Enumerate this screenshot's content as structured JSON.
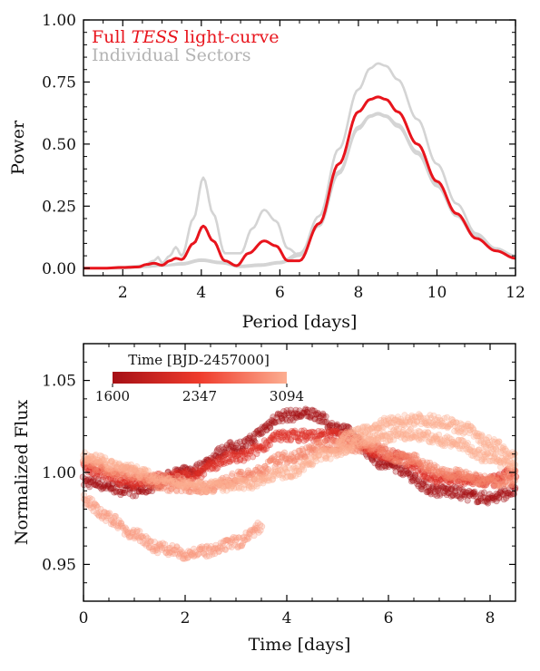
{
  "chart_data": [
    {
      "type": "line",
      "xlabel": "Period [days]",
      "ylabel": "Power",
      "xlim": [
        1,
        12
      ],
      "ylim": [
        -0.03,
        1.0
      ],
      "x_ticks": [
        2,
        4,
        6,
        8,
        10,
        12
      ],
      "y_ticks": [
        0.0,
        0.25,
        0.5,
        0.75,
        1.0
      ],
      "y_tick_labels": [
        "0.00",
        "0.25",
        "0.50",
        "0.75",
        "1.00"
      ],
      "legend": {
        "placement": "top-left",
        "entries": [
          {
            "prefix": "Full ",
            "emphasis": "TESS",
            "suffix": " light-curve",
            "color": "#e8141c"
          },
          {
            "text": "Individual Sectors",
            "color": "#b3b3b3"
          }
        ]
      },
      "series": [
        {
          "role": "sector",
          "color": "#d4d4d4",
          "x": [
            1.0,
            1.5,
            2.0,
            2.5,
            2.8,
            2.9,
            3.0,
            3.2,
            3.35,
            3.5,
            3.8,
            4.05,
            4.3,
            4.6,
            5.0,
            5.3,
            5.6,
            5.9,
            6.2,
            6.5,
            7.0,
            7.5,
            8.0,
            8.3,
            8.5,
            8.7,
            9.0,
            9.5,
            10.0,
            10.5,
            11.0,
            11.5,
            12.0
          ],
          "y": [
            0.0,
            0.0,
            0.005,
            0.01,
            0.03,
            0.045,
            0.02,
            0.05,
            0.085,
            0.05,
            0.2,
            0.365,
            0.22,
            0.06,
            0.06,
            0.16,
            0.235,
            0.19,
            0.08,
            0.05,
            0.21,
            0.48,
            0.72,
            0.805,
            0.825,
            0.815,
            0.76,
            0.6,
            0.42,
            0.26,
            0.14,
            0.08,
            0.05
          ]
        },
        {
          "role": "sector",
          "color": "#d4d4d4",
          "x": [
            1.0,
            1.5,
            2.0,
            2.5,
            3.0,
            3.5,
            4.0,
            4.5,
            5.0,
            5.5,
            6.0,
            6.5,
            7.0,
            7.5,
            8.0,
            8.3,
            8.5,
            8.7,
            9.0,
            9.5,
            10.0,
            10.5,
            11.0,
            11.5,
            12.0
          ],
          "y": [
            0.0,
            0.0,
            0.0,
            0.005,
            0.01,
            0.015,
            0.03,
            0.02,
            0.005,
            0.01,
            0.02,
            0.05,
            0.17,
            0.38,
            0.56,
            0.61,
            0.62,
            0.61,
            0.57,
            0.46,
            0.33,
            0.21,
            0.12,
            0.07,
            0.04
          ]
        },
        {
          "role": "sector",
          "color": "#d4d4d4",
          "x": [
            1.0,
            1.5,
            2.0,
            2.5,
            3.0,
            3.5,
            4.0,
            4.5,
            5.0,
            5.5,
            6.0,
            6.5,
            7.0,
            7.5,
            8.0,
            8.3,
            8.5,
            8.7,
            9.0,
            9.5,
            10.0,
            10.5,
            11.0,
            11.5,
            12.0
          ],
          "y": [
            0.0,
            0.0,
            0.0,
            0.005,
            0.01,
            0.02,
            0.035,
            0.025,
            0.01,
            0.015,
            0.025,
            0.06,
            0.18,
            0.39,
            0.57,
            0.615,
            0.625,
            0.615,
            0.58,
            0.47,
            0.34,
            0.22,
            0.13,
            0.08,
            0.05
          ]
        },
        {
          "role": "full",
          "color": "#e8141c",
          "x": [
            1.0,
            1.5,
            2.0,
            2.4,
            2.6,
            2.8,
            3.0,
            3.2,
            3.35,
            3.5,
            3.8,
            4.05,
            4.3,
            4.6,
            4.9,
            5.2,
            5.6,
            5.9,
            6.2,
            6.5,
            7.0,
            7.5,
            8.0,
            8.3,
            8.5,
            8.7,
            9.0,
            9.5,
            10.0,
            10.5,
            11.0,
            11.5,
            12.0
          ],
          "y": [
            0.0,
            0.0,
            0.003,
            0.005,
            0.015,
            0.02,
            0.012,
            0.03,
            0.04,
            0.035,
            0.1,
            0.17,
            0.11,
            0.03,
            0.01,
            0.06,
            0.11,
            0.09,
            0.03,
            0.03,
            0.18,
            0.42,
            0.63,
            0.68,
            0.69,
            0.68,
            0.63,
            0.5,
            0.35,
            0.22,
            0.12,
            0.07,
            0.04
          ]
        }
      ]
    },
    {
      "type": "scatter",
      "xlabel": "Time [days]",
      "ylabel": "Normalized Flux",
      "xlim": [
        0,
        8.5
      ],
      "ylim": [
        0.93,
        1.07
      ],
      "x_ticks": [
        0,
        2,
        4,
        6,
        8
      ],
      "y_ticks": [
        0.95,
        1.0,
        1.05
      ],
      "y_tick_labels": [
        "0.95",
        "1.00",
        "1.05"
      ],
      "colorbar": {
        "label": "Time [BJD-2457000]",
        "range": [
          1600,
          3094
        ],
        "ticks": [
          1600,
          2347,
          3094
        ],
        "colors": [
          "#a50f15",
          "#ef3b2c",
          "#fcae91"
        ],
        "placement": "top-left"
      },
      "point_alpha": 0.3,
      "series": [
        {
          "time_bjd": 1600,
          "color": "#a50f15",
          "x": [
            0.0,
            1.0,
            2.0,
            3.0,
            4.0,
            4.5,
            5.0,
            6.0,
            7.0,
            8.0,
            8.5
          ],
          "y": [
            0.995,
            0.99,
            1.0,
            1.014,
            1.031,
            1.032,
            1.024,
            1.004,
            0.99,
            0.986,
            0.99
          ]
        },
        {
          "time_bjd": 2100,
          "color": "#de2d26",
          "x": [
            0.0,
            1.0,
            2.0,
            3.0,
            4.0,
            5.0,
            6.0,
            7.0,
            8.0,
            8.5
          ],
          "y": [
            1.002,
            0.995,
            0.998,
            1.008,
            1.02,
            1.02,
            1.01,
            0.997,
            0.995,
            1.0
          ]
        },
        {
          "time_bjd": 2600,
          "color": "#f4846a",
          "x": [
            0.0,
            0.8,
            1.6,
            2.4,
            3.2,
            4.0,
            4.8,
            5.6,
            6.4,
            7.2,
            8.0,
            8.5
          ],
          "y": [
            1.005,
            1.0,
            0.993,
            0.992,
            0.998,
            1.008,
            1.015,
            1.014,
            1.007,
            0.999,
            0.995,
            0.996
          ]
        },
        {
          "time_bjd": 2850,
          "color": "#fa9a80",
          "x": [
            0.0,
            0.5,
            1.0,
            1.5,
            2.0,
            2.5,
            3.0,
            3.5
          ],
          "y": [
            0.985,
            0.975,
            0.966,
            0.959,
            0.956,
            0.957,
            0.962,
            0.97
          ]
        },
        {
          "time_bjd": 3094,
          "color": "#fcae91",
          "x": [
            0.0,
            0.8,
            1.6,
            2.4,
            3.2,
            4.0,
            4.8,
            5.6,
            6.4,
            7.2,
            8.0,
            8.5
          ],
          "y": [
            1.009,
            1.002,
            0.996,
            0.992,
            0.994,
            1.0,
            1.01,
            1.018,
            1.021,
            1.017,
            1.008,
            1.002
          ]
        },
        {
          "time_bjd": 3000,
          "color": "#fcae91",
          "x": [
            5.0,
            5.5,
            6.0,
            6.5,
            7.0,
            7.5,
            8.0,
            8.5
          ],
          "y": [
            1.018,
            1.022,
            1.027,
            1.029,
            1.028,
            1.024,
            1.016,
            1.008
          ]
        }
      ]
    }
  ]
}
